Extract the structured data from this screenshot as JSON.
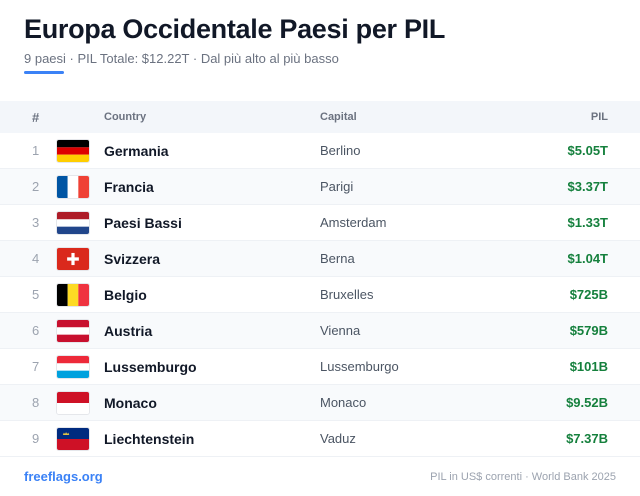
{
  "header": {
    "title": "Europa Occidentale Paesi per PIL",
    "subtitle": "9 paesi · PIL Totale: $12.22T · Dal più alto al più basso",
    "accent_color": "#3b82f6"
  },
  "table": {
    "columns": {
      "rank": "#",
      "country": "Country",
      "capital": "Capital",
      "gdp": "PIL"
    },
    "rows": [
      {
        "rank": "1",
        "flag": "germany-flag-icon",
        "country": "Germania",
        "capital": "Berlino",
        "gdp": "$5.05T"
      },
      {
        "rank": "2",
        "flag": "france-flag-icon",
        "country": "Francia",
        "capital": "Parigi",
        "gdp": "$3.37T"
      },
      {
        "rank": "3",
        "flag": "netherlands-flag-icon",
        "country": "Paesi Bassi",
        "capital": "Amsterdam",
        "gdp": "$1.33T"
      },
      {
        "rank": "4",
        "flag": "switzerland-flag-icon",
        "country": "Svizzera",
        "capital": "Berna",
        "gdp": "$1.04T"
      },
      {
        "rank": "5",
        "flag": "belgium-flag-icon",
        "country": "Belgio",
        "capital": "Bruxelles",
        "gdp": "$725B"
      },
      {
        "rank": "6",
        "flag": "austria-flag-icon",
        "country": "Austria",
        "capital": "Vienna",
        "gdp": "$579B"
      },
      {
        "rank": "7",
        "flag": "luxembourg-flag-icon",
        "country": "Lussemburgo",
        "capital": "Lussemburgo",
        "gdp": "$101B"
      },
      {
        "rank": "8",
        "flag": "monaco-flag-icon",
        "country": "Monaco",
        "capital": "Monaco",
        "gdp": "$9.52B"
      },
      {
        "rank": "9",
        "flag": "liechtenstein-flag-icon",
        "country": "Liechtenstein",
        "capital": "Vaduz",
        "gdp": "$7.37B"
      }
    ]
  },
  "footer": {
    "link": "freeflags.org",
    "note": "PIL in US$ correnti · World Bank 2025"
  }
}
